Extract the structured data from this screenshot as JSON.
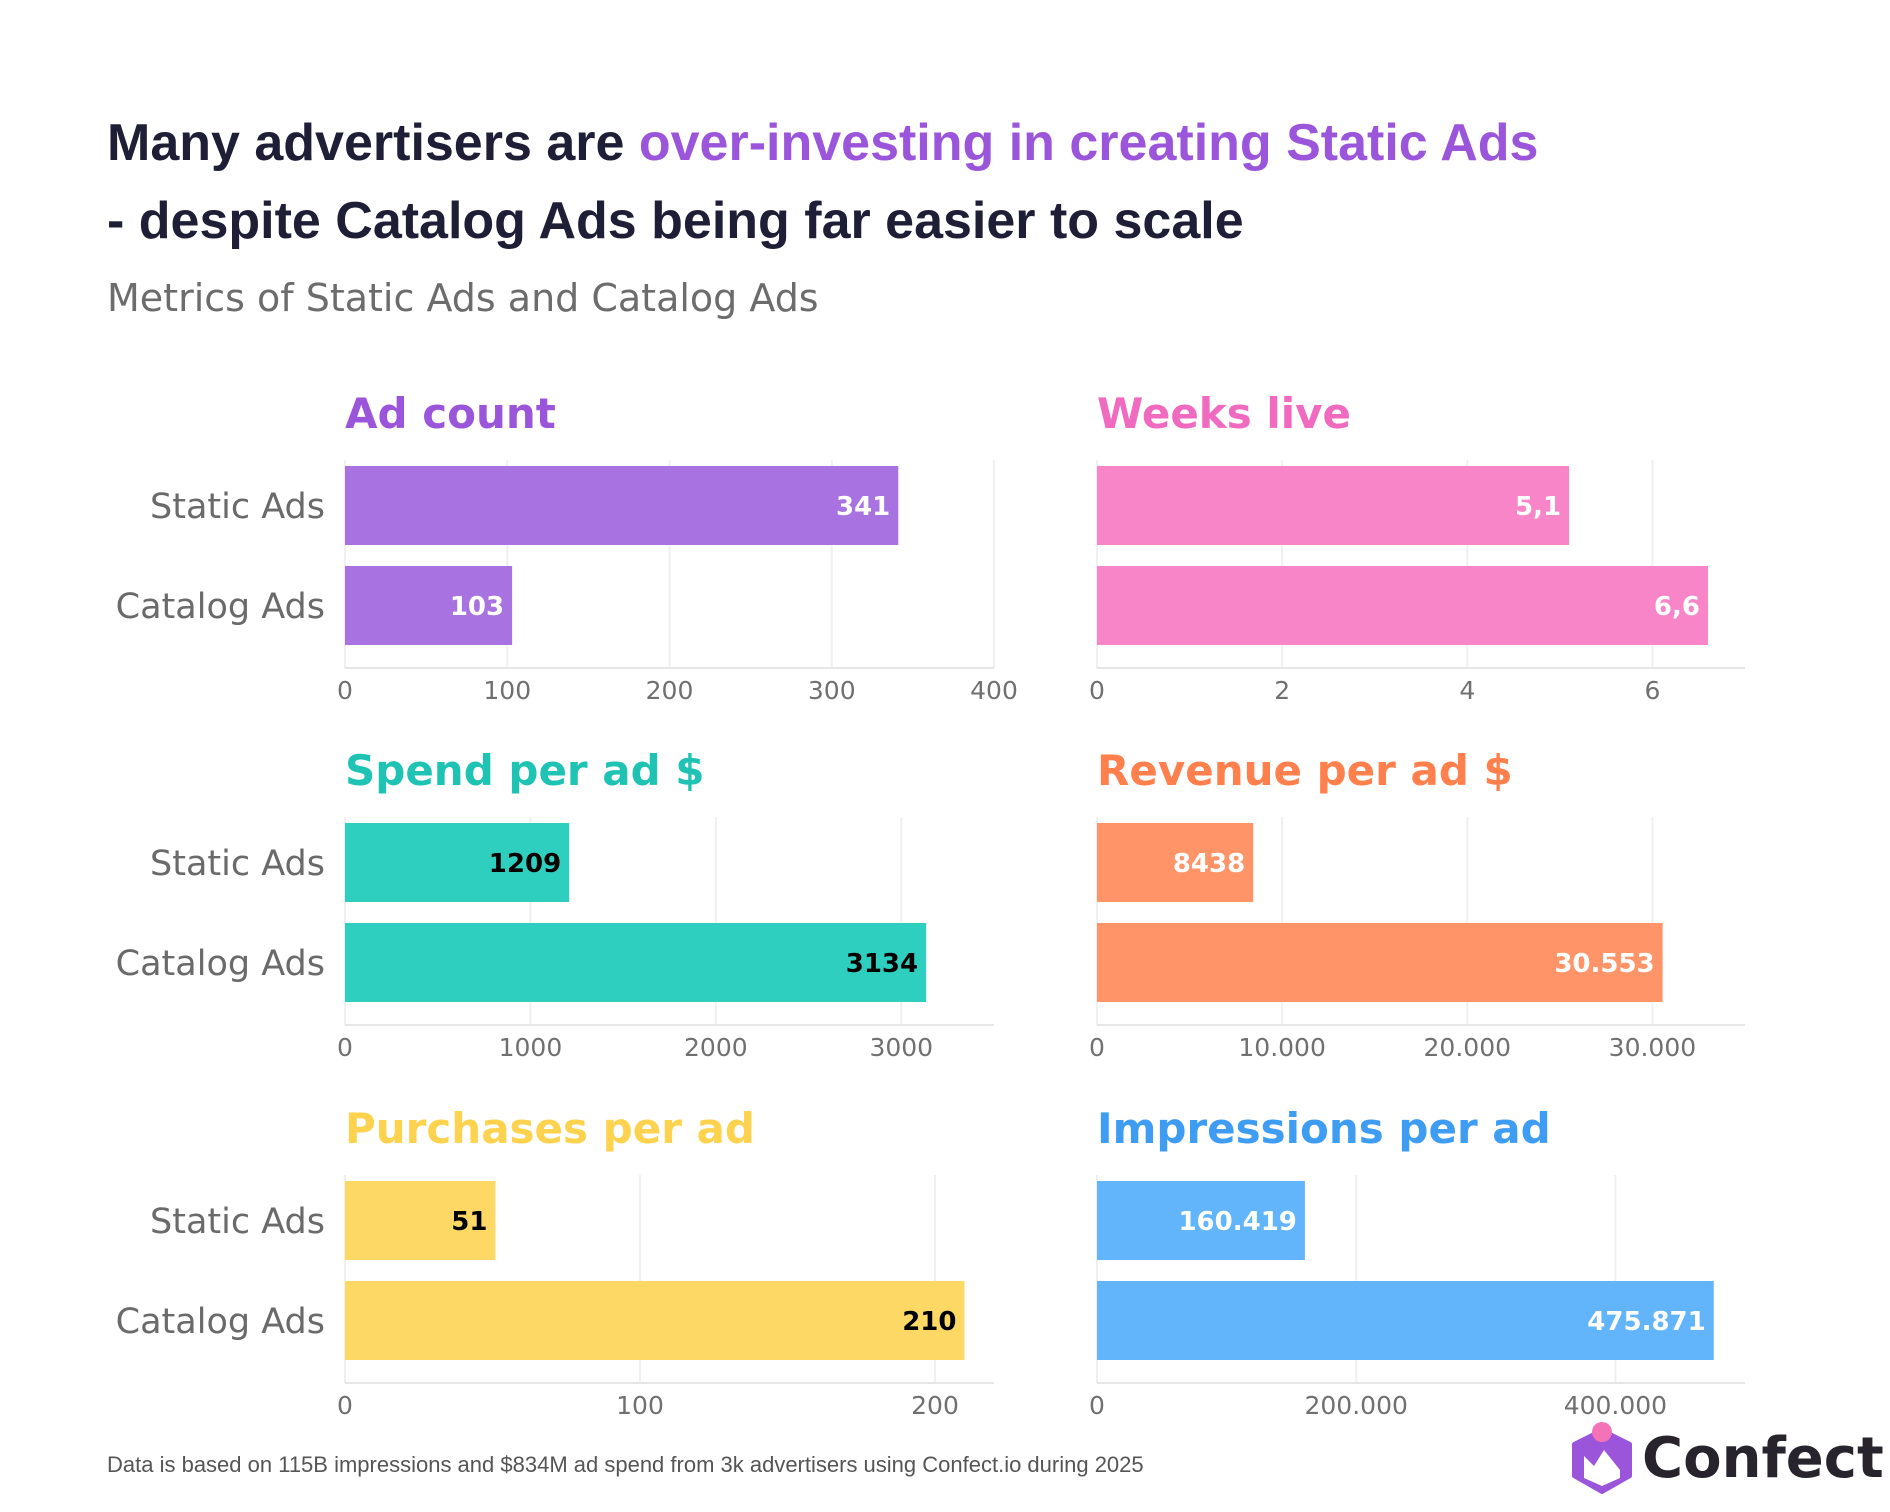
{
  "header": {
    "title_part1": "Many advertisers are ",
    "title_highlight": "over-investing in creating Static Ads",
    "title_line2": "- despite Catalog Ads being far easier to scale",
    "subtitle": "Metrics of Static Ads and Catalog Ads"
  },
  "footer": "Data is based on 115B impressions and $834M ad spend from 3k advertisers using Confect.io during 2025",
  "logo": {
    "text": "Confect",
    "icon": "confect-hexagon-icon",
    "colors": {
      "hex": "#9b55db",
      "dot": "#f472b6"
    }
  },
  "colors": {
    "title_dark": "#1e1f36",
    "highlight": "#9b55db"
  },
  "chart_data": [
    {
      "type": "bar",
      "orientation": "horizontal",
      "title": "Ad count",
      "categories": [
        "Static Ads",
        "Catalog Ads"
      ],
      "values": [
        341,
        103
      ],
      "value_labels": [
        "341",
        "103"
      ],
      "xlim": [
        0,
        400
      ],
      "ticks": [
        0,
        100,
        200,
        300,
        400
      ],
      "tick_labels": [
        "0",
        "100",
        "200",
        "300",
        "400"
      ],
      "color": "#a872e0",
      "title_color": "#9b55db",
      "label_color": "#ffffff"
    },
    {
      "type": "bar",
      "orientation": "horizontal",
      "title": "Weeks live",
      "categories": [
        "Static Ads",
        "Catalog Ads"
      ],
      "values": [
        5.1,
        6.6
      ],
      "value_labels": [
        "5,1",
        "6,6"
      ],
      "xlim": [
        0,
        7
      ],
      "ticks": [
        0,
        2,
        4,
        6
      ],
      "tick_labels": [
        "0",
        "2",
        "4",
        "6"
      ],
      "color": "#f885c8",
      "title_color": "#f06abf",
      "label_color": "#ffffff"
    },
    {
      "type": "bar",
      "orientation": "horizontal",
      "title": "Spend per ad $",
      "categories": [
        "Static Ads",
        "Catalog Ads"
      ],
      "values": [
        1209,
        3134
      ],
      "value_labels": [
        "1209",
        "3134"
      ],
      "xlim": [
        0,
        3500
      ],
      "ticks": [
        0,
        1000,
        2000,
        3000
      ],
      "tick_labels": [
        "0",
        "1000",
        "2000",
        "3000"
      ],
      "color": "#2fcfc0",
      "title_color": "#1fc3b3",
      "label_color": "#000000"
    },
    {
      "type": "bar",
      "orientation": "horizontal",
      "title": "Revenue per ad $",
      "categories": [
        "Static Ads",
        "Catalog Ads"
      ],
      "values": [
        8438,
        30553
      ],
      "value_labels": [
        "8438",
        "30.553"
      ],
      "xlim": [
        0,
        35000
      ],
      "ticks": [
        0,
        10000,
        20000,
        30000
      ],
      "tick_labels": [
        "0",
        "10.000",
        "20.000",
        "30.000"
      ],
      "color": "#ff9468",
      "title_color": "#ff7f4d",
      "label_color": "#ffffff"
    },
    {
      "type": "bar",
      "orientation": "horizontal",
      "title": "Purchases per ad",
      "categories": [
        "Static Ads",
        "Catalog Ads"
      ],
      "values": [
        51,
        210
      ],
      "value_labels": [
        "51",
        "210"
      ],
      "xlim": [
        0,
        220
      ],
      "ticks": [
        0,
        100,
        200
      ],
      "tick_labels": [
        "0",
        "100",
        "200"
      ],
      "color": "#fdd865",
      "title_color": "#fdd24e",
      "label_color": "#000000"
    },
    {
      "type": "bar",
      "orientation": "horizontal",
      "title": "Impressions per ad",
      "categories": [
        "Static Ads",
        "Catalog Ads"
      ],
      "values": [
        160419,
        475871
      ],
      "value_labels": [
        "160.419",
        "475.871"
      ],
      "xlim": [
        0,
        500000
      ],
      "ticks": [
        0,
        200000,
        400000
      ],
      "tick_labels": [
        "0",
        "200.000",
        "400.000"
      ],
      "color": "#62b4fb",
      "title_color": "#3e9cf2",
      "label_color": "#ffffff"
    }
  ]
}
